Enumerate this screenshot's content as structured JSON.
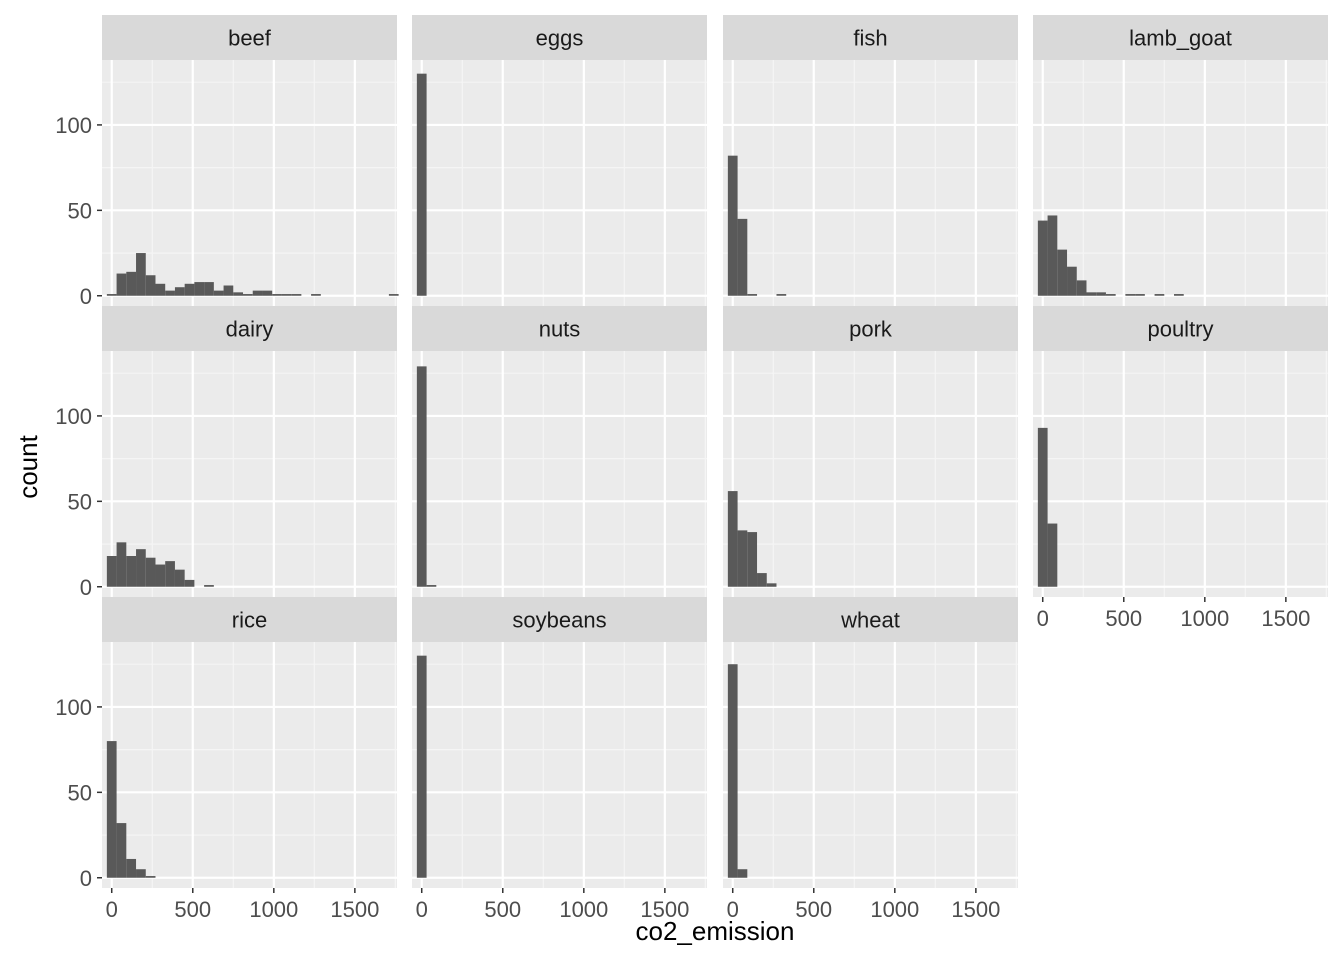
{
  "chart_data": {
    "type": "bar",
    "xlabel": "co2_emission",
    "ylabel": "count",
    "xlim": [
      -60,
      1760
    ],
    "ylim": [
      -6,
      138
    ],
    "x_ticks": [
      0,
      500,
      1000,
      1500
    ],
    "y_ticks": [
      0,
      50,
      100
    ],
    "bin_width": 60,
    "bin_start": -30,
    "grid": true,
    "legend": "none",
    "colors": {
      "bar": "#595959",
      "panel": "#ebebeb",
      "strip": "#d9d9d9",
      "grid_major": "#ffffff",
      "grid_minor": "#f5f5f5"
    },
    "facets": [
      {
        "name": "beef",
        "values": [
          1,
          13,
          14,
          25,
          12,
          7,
          3,
          5,
          7,
          8,
          8,
          3,
          6,
          2,
          1,
          3,
          3,
          1,
          1,
          1,
          0,
          1,
          0,
          0,
          0,
          0,
          0,
          0,
          0,
          1
        ]
      },
      {
        "name": "eggs",
        "values": [
          130
        ]
      },
      {
        "name": "fish",
        "values": [
          82,
          45,
          1,
          0,
          0,
          1
        ]
      },
      {
        "name": "lamb_goat",
        "values": [
          44,
          47,
          27,
          17,
          9,
          2,
          2,
          1,
          0,
          1,
          1,
          0,
          1,
          0,
          1
        ]
      },
      {
        "name": "dairy",
        "values": [
          18,
          26,
          18,
          22,
          17,
          13,
          15,
          10,
          4,
          0,
          1
        ]
      },
      {
        "name": "nuts",
        "values": [
          129,
          1
        ]
      },
      {
        "name": "pork",
        "values": [
          56,
          33,
          32,
          8,
          2
        ]
      },
      {
        "name": "poultry",
        "values": [
          93,
          37
        ]
      },
      {
        "name": "rice",
        "values": [
          80,
          32,
          11,
          5,
          1
        ]
      },
      {
        "name": "soybeans",
        "values": [
          130
        ]
      },
      {
        "name": "wheat",
        "values": [
          125,
          5
        ]
      }
    ]
  }
}
